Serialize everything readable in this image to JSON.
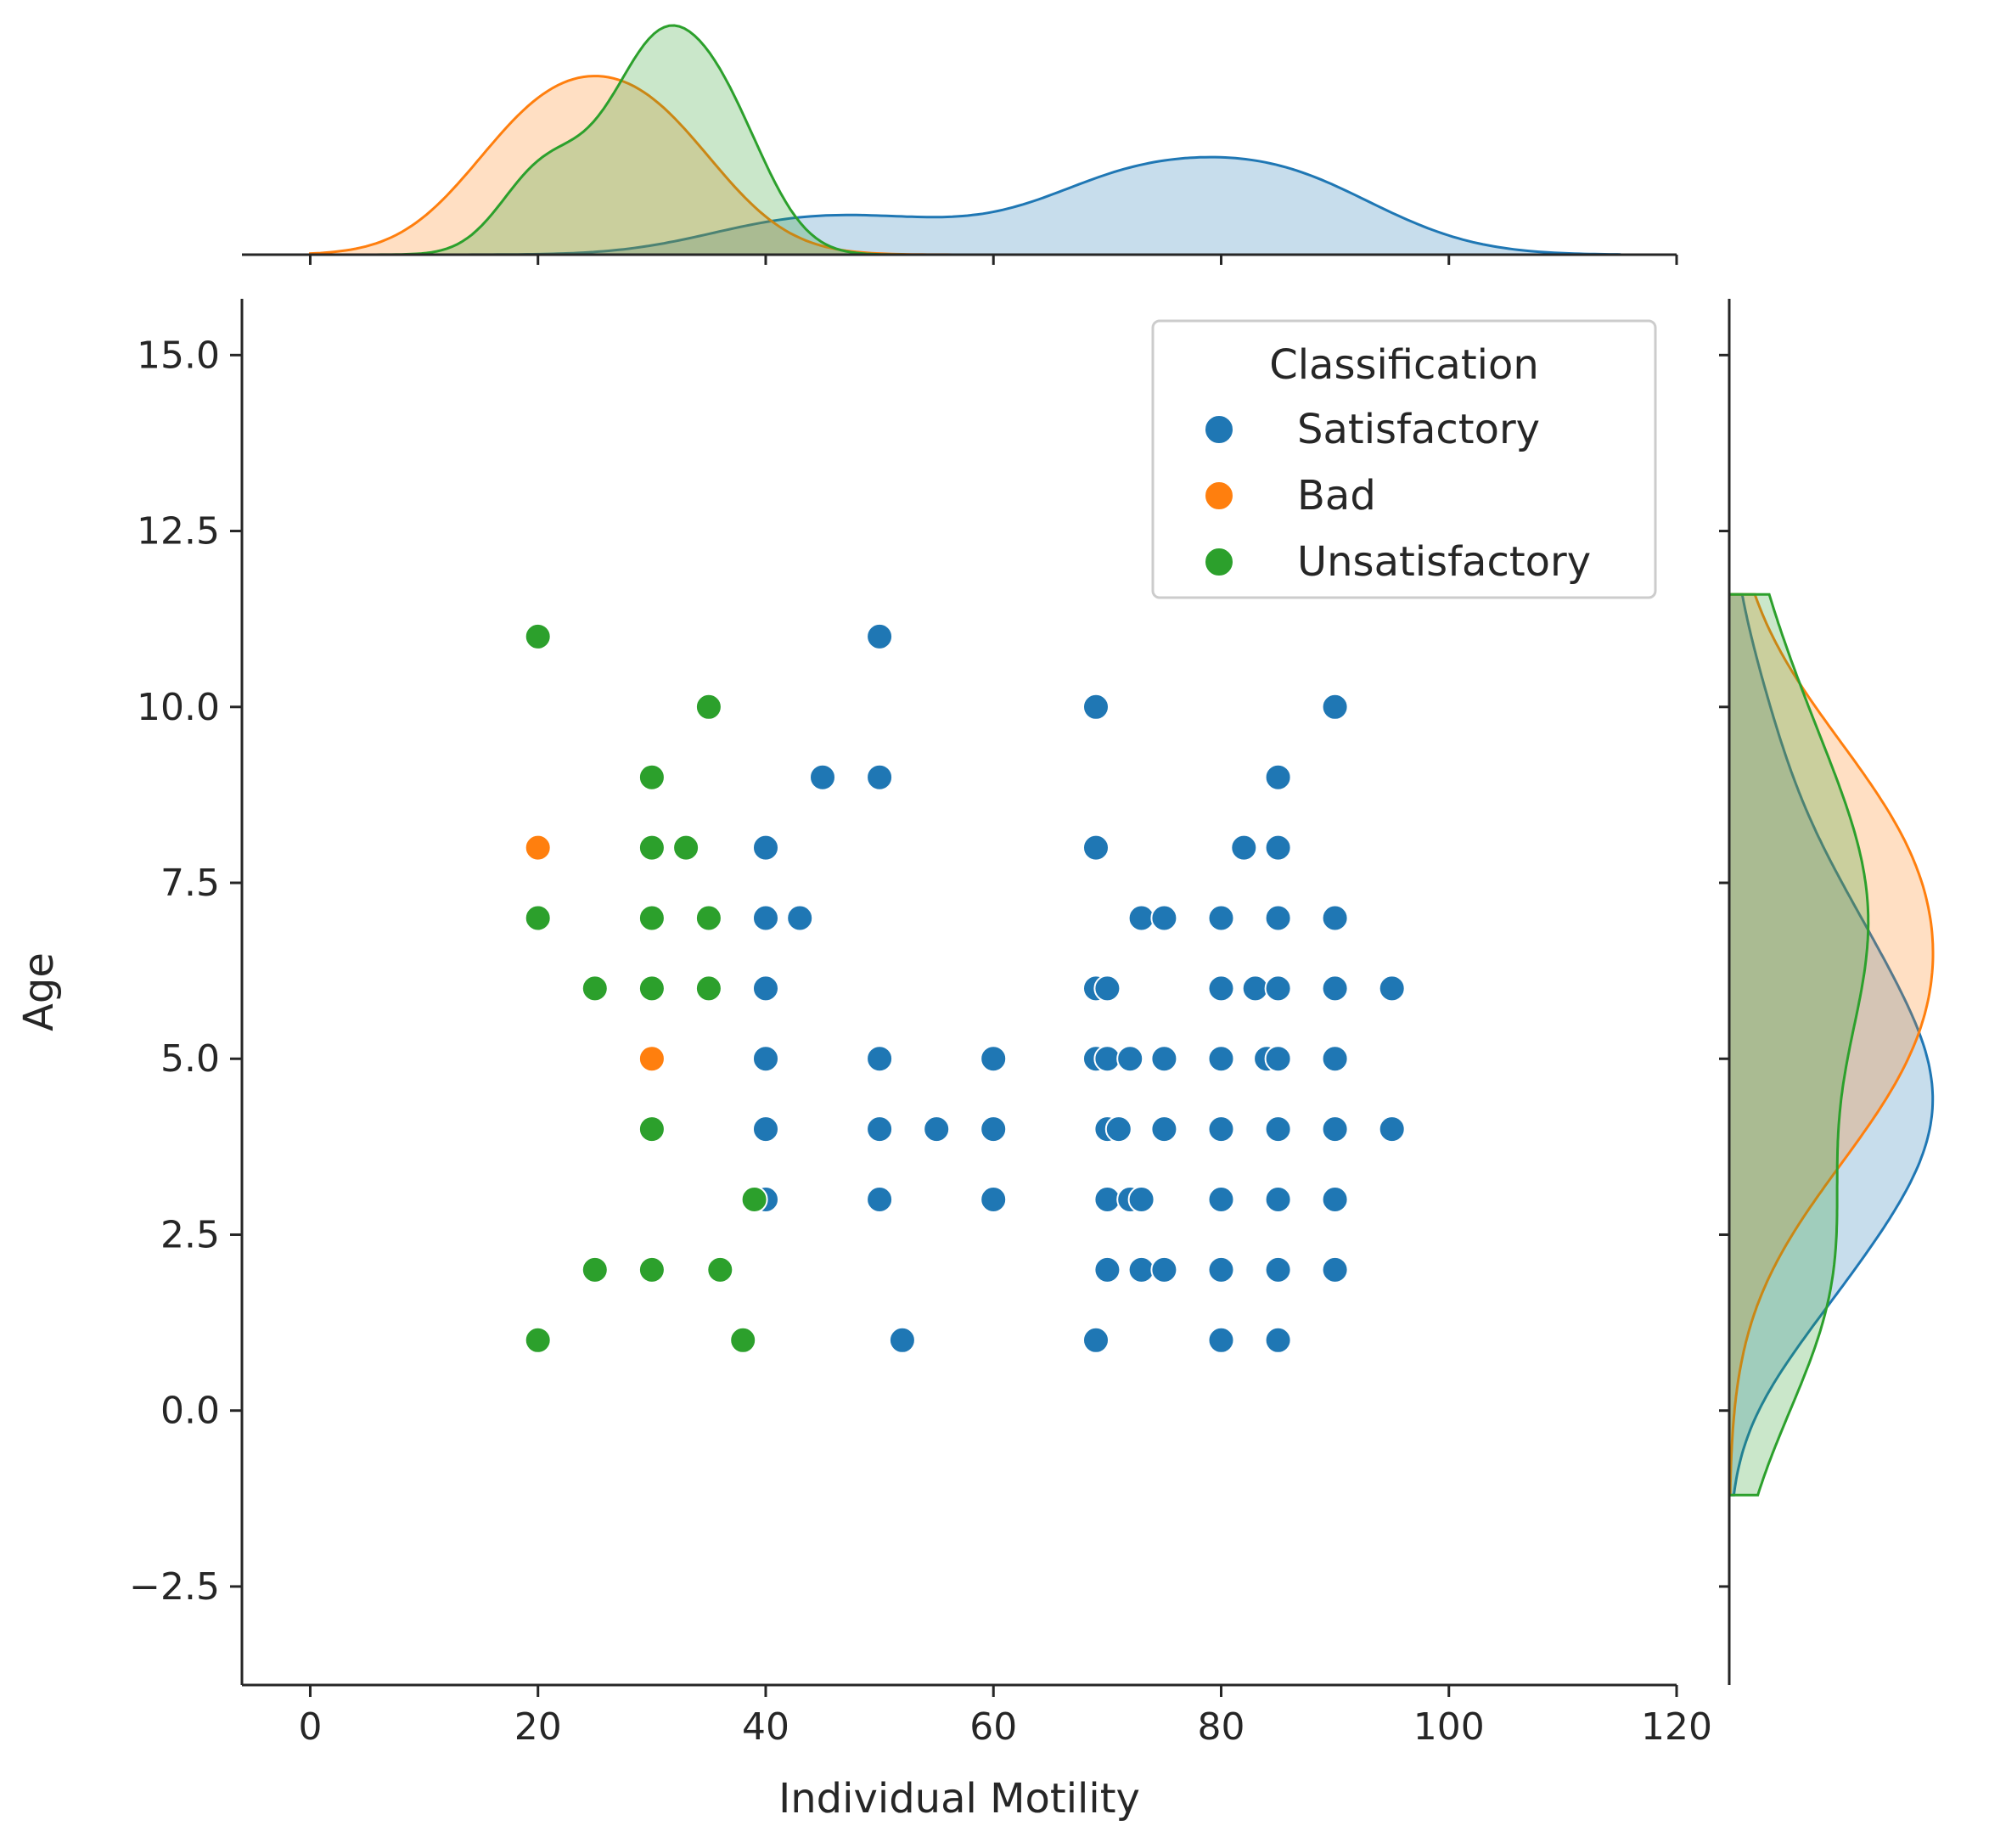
{
  "chart_data": {
    "type": "scatter",
    "xlabel": "Individual Motility",
    "ylabel": "Age",
    "xlim": [
      -6,
      120
    ],
    "ylim": [
      -3.9,
      15.8
    ],
    "xticks": [
      0,
      20,
      40,
      60,
      80,
      100,
      120
    ],
    "yticks": [
      -2.5,
      0.0,
      2.5,
      5.0,
      7.5,
      10.0,
      12.5,
      15.0
    ],
    "ytick_labels": [
      "−2.5",
      "0.0",
      "2.5",
      "5.0",
      "7.5",
      "10.0",
      "12.5",
      "15.0"
    ],
    "grid": false,
    "legend": {
      "title": "Classification",
      "placement": "top-right"
    },
    "marginals": "kde",
    "series": [
      {
        "name": "Satisfactory",
        "color": "#1f77b4",
        "points": [
          [
            50,
            11
          ],
          [
            69,
            10
          ],
          [
            90,
            10
          ],
          [
            45,
            9
          ],
          [
            50,
            9
          ],
          [
            85,
            9
          ],
          [
            40,
            8
          ],
          [
            69,
            8
          ],
          [
            82,
            8
          ],
          [
            85,
            8
          ],
          [
            40,
            7
          ],
          [
            43,
            7
          ],
          [
            73,
            7
          ],
          [
            75,
            7
          ],
          [
            80,
            7
          ],
          [
            85,
            7
          ],
          [
            90,
            7
          ],
          [
            40,
            6
          ],
          [
            69,
            6
          ],
          [
            70,
            6
          ],
          [
            80,
            6
          ],
          [
            83,
            6
          ],
          [
            85,
            6
          ],
          [
            90,
            6
          ],
          [
            95,
            6
          ],
          [
            40,
            5
          ],
          [
            50,
            5
          ],
          [
            60,
            5
          ],
          [
            69,
            5
          ],
          [
            70,
            5
          ],
          [
            72,
            5
          ],
          [
            75,
            5
          ],
          [
            80,
            5
          ],
          [
            84,
            5
          ],
          [
            85,
            5
          ],
          [
            90,
            5
          ],
          [
            40,
            4
          ],
          [
            50,
            4
          ],
          [
            55,
            4
          ],
          [
            60,
            4
          ],
          [
            70,
            4
          ],
          [
            71,
            4
          ],
          [
            75,
            4
          ],
          [
            80,
            4
          ],
          [
            85,
            4
          ],
          [
            90,
            4
          ],
          [
            95,
            4
          ],
          [
            40,
            3
          ],
          [
            50,
            3
          ],
          [
            60,
            3
          ],
          [
            70,
            3
          ],
          [
            72,
            3
          ],
          [
            73,
            3
          ],
          [
            80,
            3
          ],
          [
            85,
            3
          ],
          [
            90,
            3
          ],
          [
            70,
            2
          ],
          [
            73,
            2
          ],
          [
            75,
            2
          ],
          [
            80,
            2
          ],
          [
            85,
            2
          ],
          [
            90,
            2
          ],
          [
            52,
            1
          ],
          [
            69,
            1
          ],
          [
            80,
            1
          ],
          [
            85,
            1
          ]
        ]
      },
      {
        "name": "Bad",
        "color": "#ff7f0e",
        "points": [
          [
            20,
            8
          ],
          [
            30,
            5
          ]
        ]
      },
      {
        "name": "Unsatisfactory",
        "color": "#2ca02c",
        "points": [
          [
            20,
            11
          ],
          [
            35,
            10
          ],
          [
            30,
            9
          ],
          [
            30,
            8
          ],
          [
            33,
            8
          ],
          [
            20,
            7
          ],
          [
            30,
            7
          ],
          [
            35,
            7
          ],
          [
            25,
            6
          ],
          [
            30,
            6
          ],
          [
            35,
            6
          ],
          [
            30,
            4
          ],
          [
            39,
            3
          ],
          [
            25,
            2
          ],
          [
            30,
            2
          ],
          [
            36,
            2
          ],
          [
            20,
            1
          ],
          [
            38,
            1
          ]
        ]
      }
    ]
  }
}
